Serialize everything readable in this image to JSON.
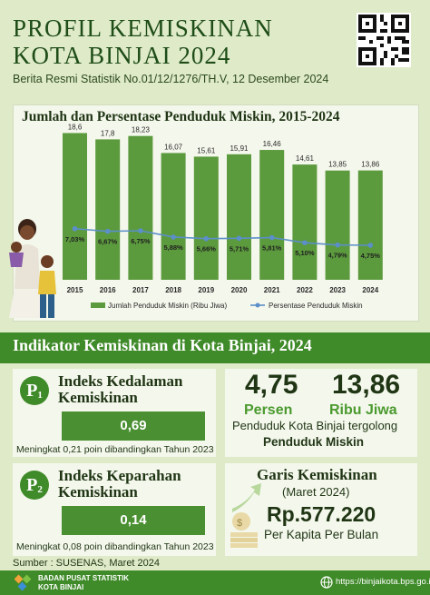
{
  "header": {
    "title_line1": "PROFIL KEMISKINAN",
    "title_line2": "KOTA BINJAI 2024",
    "subtitle": "Berita Resmi Statistik No.01/12/1276/TH.V, 12 Desember  2024"
  },
  "chart_data": {
    "type": "bar",
    "title": "Jumlah dan Persentase Penduduk Miskin, 2015-2024",
    "categories": [
      "2015",
      "2016",
      "2017",
      "2018",
      "2019",
      "2020",
      "2021",
      "2022",
      "2023",
      "2024"
    ],
    "series": [
      {
        "name": "Jumlah Penduduk Miskin (Ribu Jiwa)",
        "type": "bar",
        "color": "#5c9a3e",
        "values": [
          18.6,
          17.8,
          18.23,
          16.07,
          15.61,
          15.91,
          16.46,
          14.61,
          13.85,
          13.86
        ],
        "labels": [
          "18,6",
          "17,8",
          "18,23",
          "16,07",
          "15,61",
          "15,91",
          "16,46",
          "14,61",
          "13,85",
          "13,86"
        ]
      },
      {
        "name": "Persentase Penduduk Miskin",
        "type": "line",
        "color": "#5b8fc9",
        "values": [
          7.03,
          6.67,
          6.75,
          5.88,
          5.66,
          5.71,
          5.81,
          5.1,
          4.79,
          4.75
        ],
        "labels": [
          "7,03%",
          "6,67%",
          "6,75%",
          "5,88%",
          "5,66%",
          "5,71%",
          "5,81%",
          "5,10%",
          "4,79%",
          "4,75%"
        ]
      }
    ],
    "ylim_bar": [
      0,
      19
    ],
    "ylim_line": [
      0,
      20
    ],
    "legend_position": "bottom"
  },
  "indicator": {
    "heading": "Indikator Kemiskinan di Kota Binjai, 2024",
    "p1": {
      "badge": "P",
      "sub": "1",
      "title_line1": "Indeks Kedalaman",
      "title_line2": "Kemiskinan",
      "value": "0,69",
      "note": "Meningkat 0,21 poin dibandingkan Tahun 2023"
    },
    "p2": {
      "badge": "P",
      "sub": "2",
      "title_line1": "Indeks Keparahan",
      "title_line2": "Kemiskinan",
      "value": "0,14",
      "note": "Meningkat 0,08 poin dibandingkan Tahun 2023"
    }
  },
  "stats": {
    "percent_value": "4,75",
    "percent_label": "Persen",
    "count_value": "13,86",
    "count_label": "Ribu Jiwa",
    "desc_line1": "Penduduk Kota Binjai tergolong",
    "desc_line2": "Penduduk Miskin"
  },
  "garis": {
    "title": "Garis Kemiskinan",
    "period": "(Maret 2024)",
    "value": "Rp.577.220",
    "unit": "Per Kapita Per Bulan"
  },
  "footer": {
    "source": "Sumber : SUSENAS, Maret 2024",
    "org_line1": "BADAN PUSAT STATISTIK",
    "org_line2": "KOTA BINJAI",
    "url": "https://binjaikota.bps.go.id"
  },
  "colors": {
    "accent": "#3f8a29",
    "bar": "#5c9a3e",
    "line": "#5b8fc9",
    "background": "#dfeac8"
  }
}
